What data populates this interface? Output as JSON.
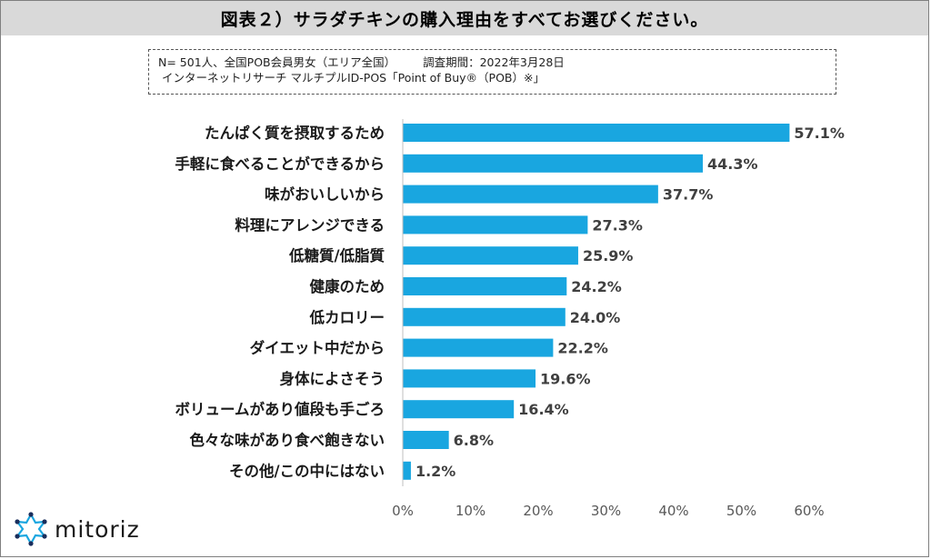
{
  "title": "図表２）サラダチキンの購入理由をすべてお選びください。",
  "note": {
    "line1_a": "N= 501人、全国POB会員男女（エリア全国）",
    "line1_b": "調査期間：2022年3月28日",
    "line2": "インターネットリサーチ マルチプルID-POS「Point of Buy®（POB）※」"
  },
  "logo": {
    "text": "mitoriz",
    "icon": "network-star-icon"
  },
  "colors": {
    "bar": "#19a6e0",
    "title_bg": "#d9d9d9"
  },
  "chart_data": {
    "type": "bar",
    "orientation": "horizontal",
    "categories": [
      "たんぱく質を摂取するため",
      "手軽に食べることができるから",
      "味がおいしいから",
      "料理にアレンジできる",
      "低糖質/低脂質",
      "健康のため",
      "低カロリー",
      "ダイエット中だから",
      "身体によさそう",
      "ボリュームがあり値段も手ごろ",
      "色々な味があり食べ飽きない",
      "その他/この中にはない"
    ],
    "values": [
      57.1,
      44.3,
      37.7,
      27.3,
      25.9,
      24.2,
      24.0,
      22.2,
      19.6,
      16.4,
      6.8,
      1.2
    ],
    "value_labels": [
      "57.1%",
      "44.3%",
      "37.7%",
      "27.3%",
      "25.9%",
      "24.2%",
      "24.0%",
      "22.2%",
      "19.6%",
      "16.4%",
      "6.8%",
      "1.2%"
    ],
    "xlim": [
      0,
      60
    ],
    "xticks": [
      "0%",
      "10%",
      "20%",
      "30%",
      "40%",
      "50%",
      "60%"
    ],
    "grid": false,
    "legend": "none"
  }
}
